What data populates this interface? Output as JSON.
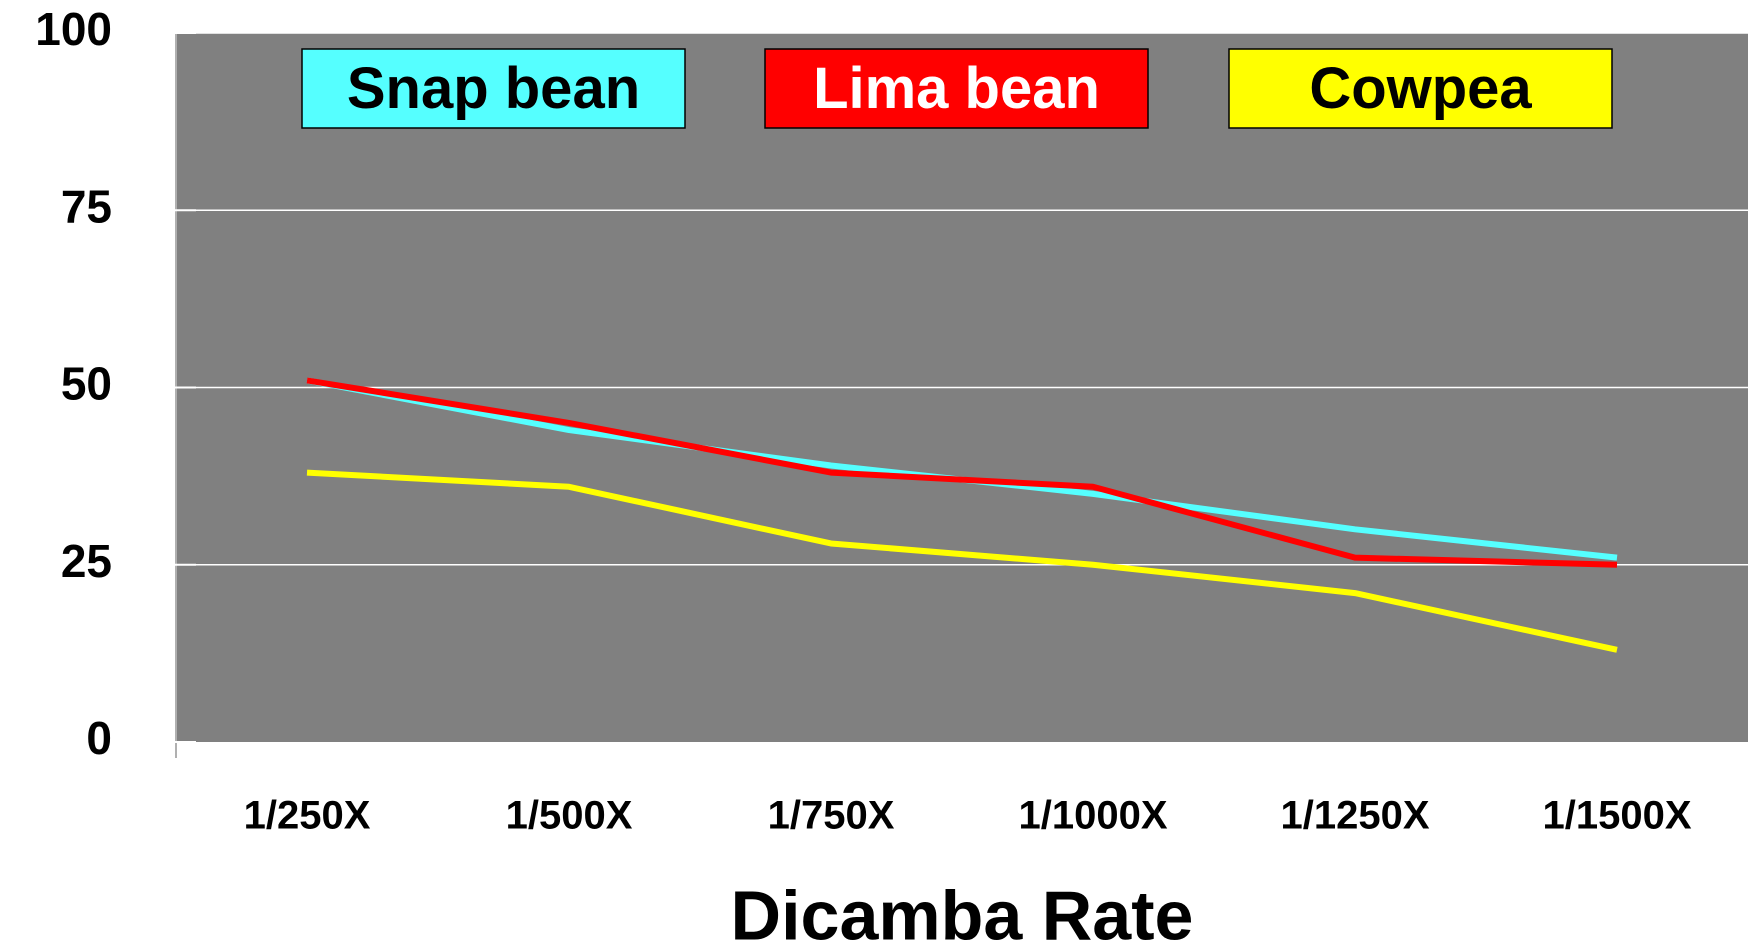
{
  "chart_data": {
    "type": "line",
    "x_label": "Dicamba Rate",
    "categories": [
      "1/250X",
      "1/500X",
      "1/750X",
      "1/1000X",
      "1/1250X",
      "1/1500X"
    ],
    "series": [
      {
        "name": "Snap bean",
        "color": "#55ffff",
        "label_color": "#000000",
        "values": [
          51,
          44,
          39,
          35,
          30,
          26
        ]
      },
      {
        "name": "Lima bean",
        "color": "#ff0000",
        "label_color": "#ffffff",
        "values": [
          51,
          45,
          38,
          36,
          26,
          25
        ]
      },
      {
        "name": "Cowpea",
        "color": "#ffff00",
        "label_color": "#000000",
        "values": [
          38,
          36,
          28,
          25,
          21,
          13
        ]
      }
    ],
    "ylim": [
      0,
      100
    ],
    "yticks": [
      0,
      25,
      50,
      75,
      100
    ],
    "grid": true,
    "plot_background": "#808080",
    "legend": "top"
  }
}
